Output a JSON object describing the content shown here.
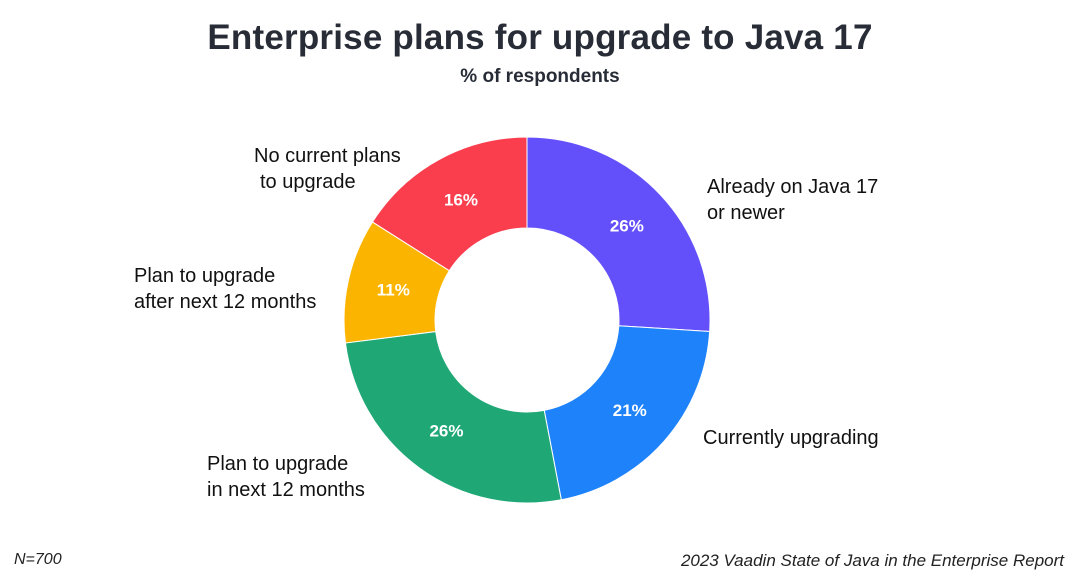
{
  "chart_data": {
    "type": "donut",
    "title": "Enterprise plans for upgrade to Java 17",
    "subtitle": "% of respondents",
    "categories": [
      "Already on Java 17 or newer",
      "Currently upgrading",
      "Plan to upgrade in next 12 months",
      "Plan to upgrade after next 12 months",
      "No current plans to upgrade"
    ],
    "values": [
      26,
      21,
      26,
      11,
      16
    ],
    "value_labels": [
      "26%",
      "21%",
      "26%",
      "11%",
      "16%"
    ],
    "colors": [
      "#6450fa",
      "#1e82fa",
      "#1fa876",
      "#fbb500",
      "#fa3e4d"
    ],
    "label_lines": [
      [
        "Already on Java 17",
        "or newer"
      ],
      [
        "Currently upgrading"
      ],
      [
        "Plan to upgrade",
        "in next 12 months"
      ],
      [
        "Plan to upgrade",
        "after next 12 months"
      ],
      [
        "No current plans",
        "to upgrade"
      ]
    ],
    "start_angle_deg": 0,
    "direction": "clockwise"
  },
  "footer": {
    "sample": "N=700",
    "source": "2023 Vaadin State of Java in the Enterprise Report"
  }
}
